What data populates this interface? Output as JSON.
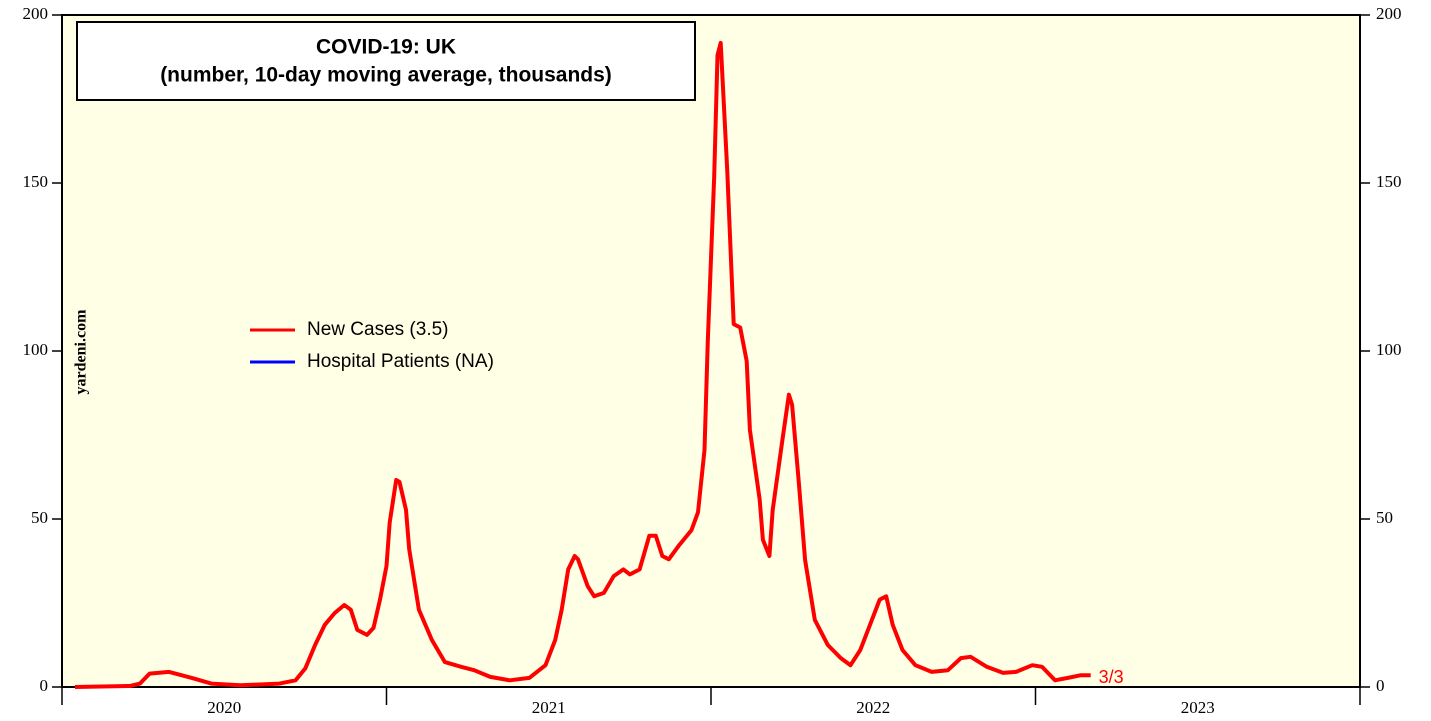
{
  "chart_data": {
    "type": "line",
    "title": "COVID-19: UK",
    "subtitle": "(number, 10-day moving average, thousands)",
    "watermark": "yardeni.com",
    "x": [
      2020.04,
      2020.21,
      2020.24,
      2020.27,
      2020.33,
      2020.4,
      2020.46,
      2020.55,
      2020.67,
      2020.72,
      2020.75,
      2020.78,
      2020.81,
      2020.84,
      2020.87,
      2020.89,
      2020.91,
      2020.94,
      2020.96,
      2020.98,
      2021.0,
      2021.01,
      2021.03,
      2021.04,
      2021.06,
      2021.07,
      2021.1,
      2021.14,
      2021.18,
      2021.23,
      2021.27,
      2021.32,
      2021.38,
      2021.44,
      2021.49,
      2021.52,
      2021.54,
      2021.56,
      2021.58,
      2021.59,
      2021.62,
      2021.64,
      2021.67,
      2021.7,
      2021.73,
      2021.75,
      2021.78,
      2021.81,
      2021.83,
      2021.85,
      2021.87,
      2021.9,
      2021.94,
      2021.96,
      2021.98,
      2021.99,
      2022.01,
      2022.02,
      2022.03,
      2022.05,
      2022.07,
      2022.09,
      2022.11,
      2022.12,
      2022.15,
      2022.16,
      2022.18,
      2022.19,
      2022.22,
      2022.24,
      2022.25,
      2022.27,
      2022.29,
      2022.32,
      2022.36,
      2022.4,
      2022.43,
      2022.46,
      2022.49,
      2022.52,
      2022.54,
      2022.56,
      2022.59,
      2022.63,
      2022.68,
      2022.73,
      2022.77,
      2022.8,
      2022.85,
      2022.9,
      2022.94,
      2022.99,
      2023.02,
      2023.06,
      2023.1,
      2023.14,
      2023.17
    ],
    "series": [
      {
        "name": "New Cases (3.5)",
        "color": "#ff0000",
        "values": [
          0,
          0.3,
          1,
          4,
          4.5,
          2.7,
          1,
          0.5,
          1,
          2,
          5.6,
          12.5,
          18.5,
          22,
          24.4,
          23,
          17,
          15.5,
          17.6,
          26,
          36,
          49,
          61.6,
          61,
          52.7,
          41,
          23,
          14,
          7.4,
          6,
          5,
          3,
          2,
          2.7,
          6.5,
          14,
          23,
          35,
          39,
          38,
          30,
          27,
          28,
          33,
          35,
          33.5,
          35,
          45,
          45,
          39,
          38,
          42,
          46.7,
          52,
          70.5,
          103,
          152,
          188,
          191.7,
          154,
          108,
          107,
          97,
          76.5,
          55.7,
          43.8,
          39,
          52.7,
          73.5,
          87,
          84,
          61.6,
          37.8,
          20,
          12.5,
          8.6,
          6.5,
          11,
          18.5,
          26,
          27,
          18.5,
          11,
          6.5,
          4.5,
          5,
          8.6,
          9,
          6,
          4.2,
          4.5,
          6.5,
          6,
          2,
          2.7,
          3.5,
          3.5
        ]
      },
      {
        "name": "Hospital Patients (NA)",
        "color": "#0000ff",
        "values": [
          null,
          null,
          null,
          null,
          null,
          null,
          null,
          null,
          null,
          null,
          null,
          null,
          null,
          null,
          null,
          null,
          null,
          null,
          null,
          null,
          null,
          null,
          null,
          null,
          null,
          null,
          null,
          null,
          null,
          null,
          null,
          null,
          null,
          null,
          null,
          null,
          null,
          null,
          null,
          null,
          null,
          null,
          null,
          null,
          null,
          null,
          null,
          null,
          null,
          null,
          null,
          null,
          null,
          null,
          null,
          null,
          null,
          null,
          null,
          null,
          null,
          null,
          null,
          null,
          null,
          null,
          null,
          null,
          null,
          null,
          null,
          null,
          null,
          null,
          null,
          null,
          null,
          null,
          null,
          null,
          null,
          null,
          null,
          null,
          null,
          null,
          null,
          null,
          null,
          null,
          null,
          null,
          null,
          null,
          null,
          null,
          null
        ]
      }
    ],
    "end_label": {
      "text": "3/3",
      "color": "#ff0000"
    },
    "xlim": [
      2020,
      2024
    ],
    "xticks": [
      {
        "value": 2020.5,
        "label": "2020"
      },
      {
        "value": 2021.5,
        "label": "2021"
      },
      {
        "value": 2022.5,
        "label": "2022"
      },
      {
        "value": 2023.5,
        "label": "2023"
      }
    ],
    "ylim": [
      0,
      200
    ],
    "yticks": [
      0,
      50,
      100,
      150,
      200
    ],
    "y2lim": [
      0,
      200
    ],
    "y2ticks": [
      0,
      50,
      100,
      150,
      200
    ],
    "grid": false
  }
}
